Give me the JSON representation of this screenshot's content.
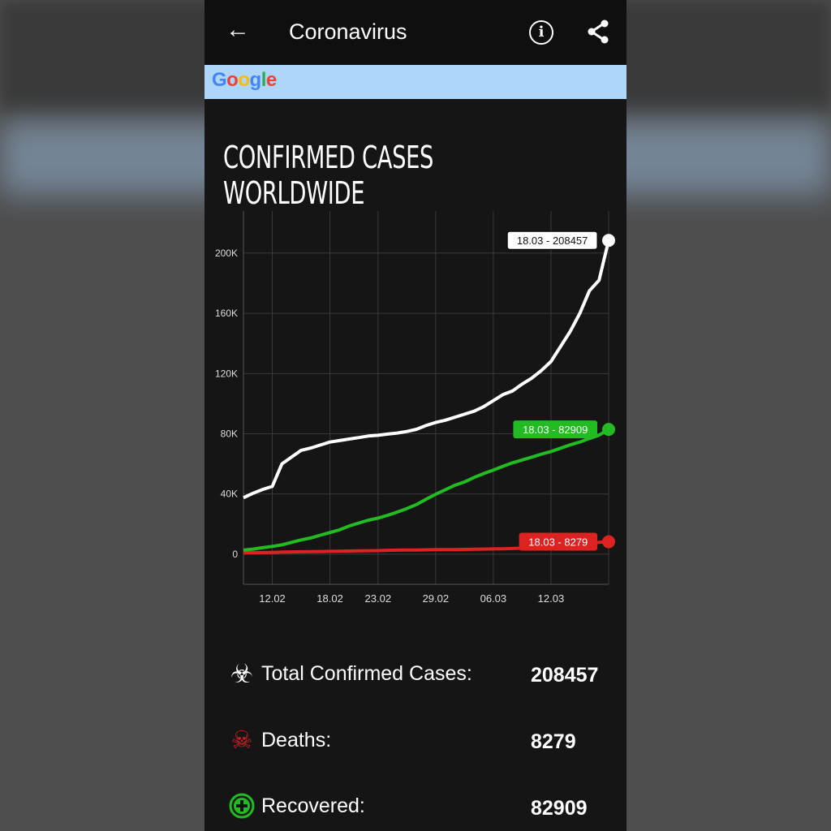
{
  "appbar": {
    "title": "Coronavirus",
    "back_icon": "arrow-left-icon",
    "info_icon": "info-icon",
    "share_icon": "share-icon"
  },
  "ad": {
    "logo": "Google"
  },
  "heading": "CONFIRMED CASES WORLDWIDE",
  "chart_data": {
    "type": "line",
    "title": "CONFIRMED CASES WORLDWIDE",
    "x": [
      "09.02",
      "10.02",
      "11.02",
      "12.02",
      "13.02",
      "14.02",
      "15.02",
      "16.02",
      "17.02",
      "18.02",
      "19.02",
      "20.02",
      "21.02",
      "22.02",
      "23.02",
      "24.02",
      "25.02",
      "26.02",
      "27.02",
      "28.02",
      "29.02",
      "01.03",
      "02.03",
      "03.03",
      "04.03",
      "05.03",
      "06.03",
      "07.03",
      "08.03",
      "09.03",
      "10.03",
      "11.03",
      "12.03",
      "13.03",
      "14.03",
      "15.03",
      "16.03",
      "17.03",
      "18.03"
    ],
    "xticks": [
      "12.02",
      "18.02",
      "23.02",
      "29.02",
      "06.03",
      "12.03"
    ],
    "yticks": [
      0,
      40000,
      80000,
      120000,
      160000,
      200000
    ],
    "ytick_labels": [
      "0",
      "40K",
      "80K",
      "120K",
      "160K",
      "200K"
    ],
    "ylim": [
      -20000,
      228000
    ],
    "grid": true,
    "series": [
      {
        "color": "#ffffff",
        "label": "18.03 - 208457",
        "values": [
          37500,
          40500,
          43000,
          45000,
          60000,
          64500,
          69000,
          70500,
          72500,
          74500,
          75500,
          76500,
          77500,
          78500,
          79000,
          79800,
          80500,
          81500,
          83000,
          85500,
          87500,
          89000,
          91000,
          93000,
          95000,
          98000,
          102000,
          106000,
          108500,
          113000,
          117000,
          122000,
          128000,
          138000,
          148000,
          160000,
          175000,
          182000,
          208457
        ]
      },
      {
        "color": "#22bb22",
        "label": "18.03 - 82909",
        "values": [
          2700,
          3400,
          4300,
          5200,
          6200,
          7900,
          9500,
          10800,
          12600,
          14400,
          16200,
          18700,
          20700,
          22600,
          24000,
          25800,
          28000,
          30300,
          33000,
          36500,
          39800,
          42800,
          45800,
          48000,
          51000,
          53600,
          55900,
          58400,
          60700,
          62600,
          64500,
          66500,
          68200,
          70400,
          72600,
          74500,
          76900,
          79100,
          82909
        ]
      },
      {
        "color": "#dd2222",
        "label": "18.03 - 8279",
        "values": [
          900,
          1000,
          1100,
          1200,
          1400,
          1500,
          1600,
          1700,
          1800,
          1900,
          2000,
          2100,
          2200,
          2300,
          2400,
          2600,
          2700,
          2800,
          2800,
          2900,
          3000,
          3000,
          3100,
          3200,
          3300,
          3400,
          3500,
          3600,
          3800,
          4000,
          4300,
          4600,
          4900,
          5400,
          5800,
          6500,
          7100,
          7900,
          8279
        ]
      }
    ]
  },
  "stats": [
    {
      "icon": "biohazard-icon",
      "label": "Total Confirmed Cases:",
      "value": "208457"
    },
    {
      "icon": "skull-icon",
      "label": "Deaths:",
      "value": "8279"
    },
    {
      "icon": "plus-circle-icon",
      "label": "Recovered:",
      "value": "82909"
    }
  ]
}
